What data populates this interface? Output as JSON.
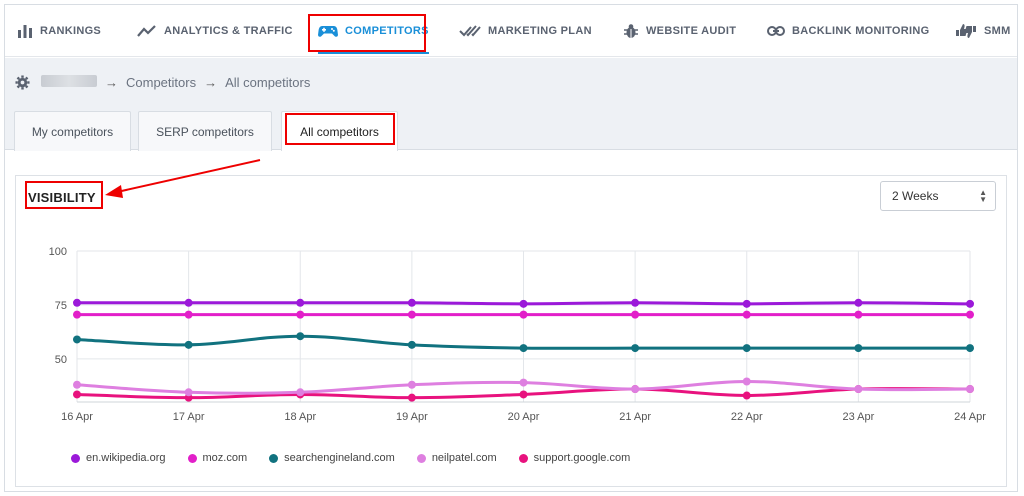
{
  "nav": {
    "items": [
      {
        "label": "RANKINGS",
        "icon": "bar-chart-icon"
      },
      {
        "label": "ANALYTICS & TRAFFIC",
        "icon": "trend-line-icon"
      },
      {
        "label": "COMPETITORS",
        "icon": "gamepad-icon",
        "active": true
      },
      {
        "label": "MARKETING PLAN",
        "icon": "double-check-icon"
      },
      {
        "label": "WEBSITE AUDIT",
        "icon": "bug-icon"
      },
      {
        "label": "BACKLINK MONITORING",
        "icon": "link-icon"
      },
      {
        "label": "SMM",
        "icon": "thumbs-icon"
      }
    ],
    "accent": "#1a8fd8"
  },
  "breadcrumb": {
    "sep": "→",
    "level1": "Competitors",
    "level2": "All competitors"
  },
  "tabs": [
    {
      "label": "My competitors"
    },
    {
      "label": "SERP competitors"
    },
    {
      "label": "All competitors",
      "active": true
    }
  ],
  "panel": {
    "title": "VISIBILITY",
    "period_select": "2 Weeks"
  },
  "chart_data": {
    "type": "line",
    "x": [
      "16 Apr",
      "17 Apr",
      "18 Apr",
      "19 Apr",
      "20 Apr",
      "21 Apr",
      "22 Apr",
      "23 Apr",
      "24 Apr"
    ],
    "yticks": [
      "50",
      "75",
      "100"
    ],
    "ylim": [
      30,
      100
    ],
    "grid": true,
    "legend_position": "bottom-left",
    "series": [
      {
        "name": "en.wikipedia.org",
        "color": "#9b19d9",
        "values": [
          76,
          76,
          76,
          76,
          75.5,
          76,
          75.5,
          76,
          75.5
        ]
      },
      {
        "name": "moz.com",
        "color": "#e21fc9",
        "values": [
          70.5,
          70.5,
          70.5,
          70.5,
          70.5,
          70.5,
          70.5,
          70.5,
          70.5
        ]
      },
      {
        "name": "searchengineland.com",
        "color": "#11727f",
        "values": [
          59,
          56.5,
          60.5,
          56.5,
          55,
          55,
          55,
          55,
          55
        ]
      },
      {
        "name": "neilpatel.com",
        "color": "#de7fe0",
        "values": [
          38,
          34.5,
          34.5,
          38,
          39,
          36,
          39.5,
          36,
          36
        ]
      },
      {
        "name": "support.google.com",
        "color": "#e8127e",
        "values": [
          33.5,
          32,
          33.5,
          32,
          33.5,
          36,
          33,
          36,
          36
        ]
      }
    ]
  }
}
